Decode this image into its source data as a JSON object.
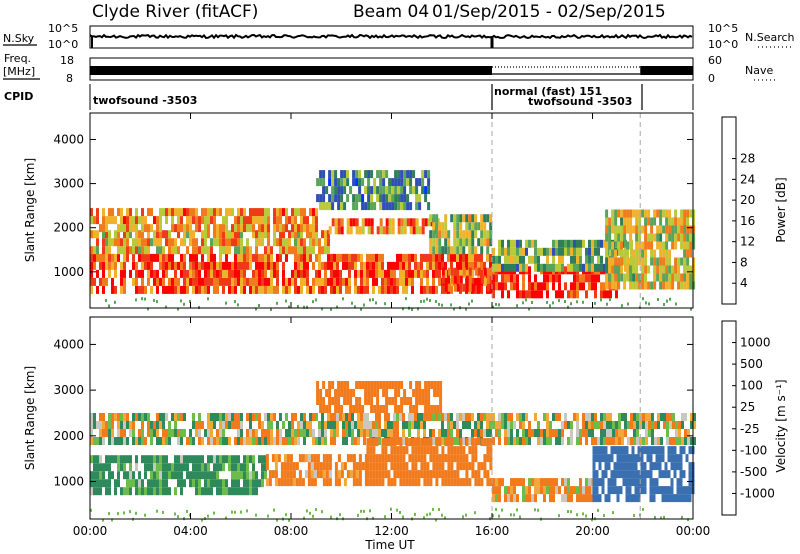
{
  "header": {
    "station": "Clyde River (fitACF)",
    "beam": "Beam 04",
    "dates": "01/Sep/2015 - 02/Sep/2015"
  },
  "top_panels": {
    "nsky_label": "N.Sky",
    "nsearch_label": "N.Search",
    "noise_ticks": [
      "10^5",
      "10^0"
    ],
    "freq_label": "Freq.",
    "freq_unit": "[MHz]",
    "freq_ticks": [
      "18",
      "8"
    ],
    "nave_label": "Nave",
    "nave_ticks": [
      "60",
      "0"
    ],
    "cpid_label": "CPID",
    "cpid_segments": [
      {
        "label": "twofsound -3503",
        "start": 0,
        "end": 16
      },
      {
        "label": "normal (fast) 151",
        "start": 16,
        "end": 24
      },
      {
        "label": "twofsound -3503",
        "start": 16,
        "end": 22
      }
    ]
  },
  "chart_data": [
    {
      "type": "heatmap",
      "name": "power",
      "ylabel": "Slant Range [km]",
      "xlabel": "Time UT",
      "x_ticks": [
        "00:00",
        "04:00",
        "08:00",
        "12:00",
        "16:00",
        "20:00",
        "00:00"
      ],
      "x_range_hours": [
        0,
        24
      ],
      "y_ticks": [
        1000,
        2000,
        3000,
        4000
      ],
      "ylim": [
        180,
        4600
      ],
      "colorbar": {
        "label": "Power [dB]",
        "ticks": [
          "4",
          "8",
          "12",
          "16",
          "20",
          "24",
          "28"
        ],
        "colors": [
          "#0033ff",
          "#2f4fb3",
          "#2e7d5b",
          "#5aa45a",
          "#b8c93a",
          "#f0b22b",
          "#f07a1c",
          "#ee3a16",
          "#ff0000"
        ]
      },
      "bands": [
        {
          "t0": 0,
          "t1": 16,
          "r0": 500,
          "r1": 1400,
          "level": 0.85
        },
        {
          "t0": 0,
          "t1": 9.5,
          "r0": 1400,
          "r1": 1900,
          "level": 0.65
        },
        {
          "t0": 0,
          "t1": 9,
          "r0": 1900,
          "r1": 2350,
          "level": 0.7
        },
        {
          "t0": 9.5,
          "t1": 13.8,
          "r0": 1850,
          "r1": 2150,
          "level": 0.75
        },
        {
          "t0": 9,
          "t1": 13.5,
          "r0": 2400,
          "r1": 3200,
          "level": 0.3
        },
        {
          "t0": 13.5,
          "t1": 16,
          "r0": 1400,
          "r1": 2300,
          "level": 0.45
        },
        {
          "t0": 14,
          "t1": 16,
          "r0": 550,
          "r1": 1000,
          "level": 0.9
        },
        {
          "t0": 16,
          "t1": 21,
          "r0": 400,
          "r1": 1000,
          "level": 0.98
        },
        {
          "t0": 16,
          "t1": 21.5,
          "r0": 1000,
          "r1": 1700,
          "level": 0.4
        },
        {
          "t0": 20.5,
          "t1": 24,
          "r0": 600,
          "r1": 2300,
          "level": 0.55
        }
      ]
    },
    {
      "type": "heatmap",
      "name": "velocity",
      "ylabel": "Slant Range [km]",
      "xlabel": "Time UT",
      "x_ticks": [
        "00:00",
        "04:00",
        "08:00",
        "12:00",
        "16:00",
        "20:00",
        "00:00"
      ],
      "x_range_hours": [
        0,
        24
      ],
      "y_ticks": [
        1000,
        2000,
        3000,
        4000
      ],
      "ylim": [
        180,
        4600
      ],
      "colorbar": {
        "label": "Velocity [m s⁻¹]",
        "ticks": [
          "1000",
          "500",
          "100",
          "25",
          "-25",
          "-100",
          "-500",
          "-1000"
        ],
        "colors": [
          "#1e3fbf",
          "#3a6fb0",
          "#2e8a5a",
          "#6dbb4a",
          "#c8c8c0",
          "#f2a838",
          "#f07a1c",
          "#ee3a16",
          "#ff0000"
        ]
      },
      "bands": [
        {
          "t0": 0,
          "t1": 24,
          "r0": 1800,
          "r1": 2400,
          "value": 0
        },
        {
          "t0": 0,
          "t1": 7,
          "r0": 700,
          "r1": 1550,
          "value": 200
        },
        {
          "t0": 7,
          "t1": 11,
          "r0": 900,
          "r1": 1600,
          "value": -200
        },
        {
          "t0": 11,
          "t1": 16,
          "r0": 900,
          "r1": 1800,
          "value": -300
        },
        {
          "t0": 16,
          "t1": 20,
          "r0": 550,
          "r1": 1000,
          "value": -150
        },
        {
          "t0": 20,
          "t1": 24,
          "r0": 550,
          "r1": 1700,
          "value": 800
        },
        {
          "t0": 9,
          "t1": 14,
          "r0": 2500,
          "r1": 3100,
          "value": -300
        }
      ]
    }
  ]
}
